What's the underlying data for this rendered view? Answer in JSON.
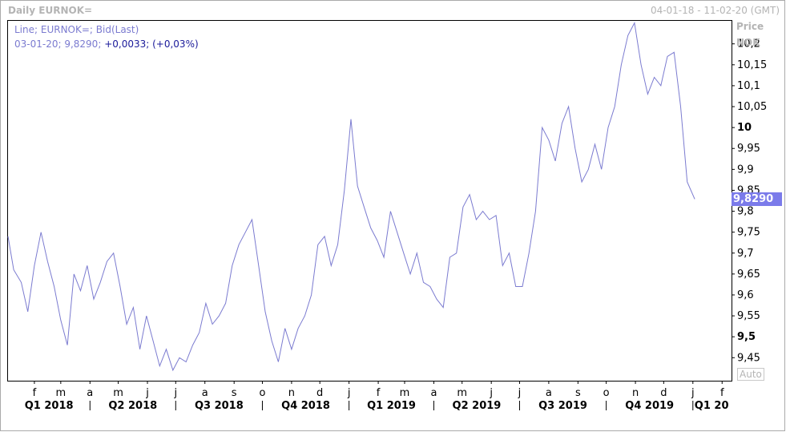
{
  "header": {
    "title": "Daily EURNOK=",
    "date_range": "04-01-18 - 11-02-20 (GMT)"
  },
  "legend": {
    "series_label": "Line; EURNOK=; Bid(Last)",
    "date": "03-01-20",
    "last": "9,8290",
    "change": "+0,0033",
    "change_pct": "(+0,03%)"
  },
  "y_axis": {
    "title": "Price",
    "unit": "NOK",
    "auto_label": "Auto"
  },
  "colors": {
    "line": "#7b7bd0",
    "badge": "#7b7bea",
    "axis_text": "#b4b4b4",
    "frame": "#000000"
  },
  "chart_data": {
    "type": "line",
    "series": [
      {
        "x": [
          "2018-01-04",
          "2018-01-10",
          "2018-01-18",
          "2018-01-25",
          "2018-02-01",
          "2018-02-08",
          "2018-02-15",
          "2018-02-22",
          "2018-03-01",
          "2018-03-08",
          "2018-03-15",
          "2018-03-22",
          "2018-03-29",
          "2018-04-05",
          "2018-04-12",
          "2018-04-19",
          "2018-04-26",
          "2018-05-03",
          "2018-05-10",
          "2018-05-17",
          "2018-05-24",
          "2018-05-31",
          "2018-06-07",
          "2018-06-14",
          "2018-06-21",
          "2018-06-28",
          "2018-07-05",
          "2018-07-12",
          "2018-07-19",
          "2018-07-26",
          "2018-08-02",
          "2018-08-09",
          "2018-08-16",
          "2018-08-23",
          "2018-08-30",
          "2018-09-06",
          "2018-09-13",
          "2018-09-20",
          "2018-09-27",
          "2018-10-04",
          "2018-10-11",
          "2018-10-18",
          "2018-10-25",
          "2018-11-01",
          "2018-11-08",
          "2018-11-15",
          "2018-11-22",
          "2018-11-29",
          "2018-12-06",
          "2018-12-13",
          "2018-12-20",
          "2018-12-27",
          "2019-01-03",
          "2019-01-10",
          "2019-01-17",
          "2019-01-24",
          "2019-01-31",
          "2019-02-07",
          "2019-02-14",
          "2019-02-21",
          "2019-02-28",
          "2019-03-07",
          "2019-03-14",
          "2019-03-21",
          "2019-03-28",
          "2019-04-04",
          "2019-04-11",
          "2019-04-18",
          "2019-04-25",
          "2019-05-02",
          "2019-05-09",
          "2019-05-16",
          "2019-05-23",
          "2019-05-30",
          "2019-06-06",
          "2019-06-13",
          "2019-06-20",
          "2019-06-27",
          "2019-07-04",
          "2019-07-11",
          "2019-07-18",
          "2019-07-25",
          "2019-08-01",
          "2019-08-08",
          "2019-08-15",
          "2019-08-22",
          "2019-08-29",
          "2019-09-05",
          "2019-09-12",
          "2019-09-19",
          "2019-09-26",
          "2019-10-03",
          "2019-10-10",
          "2019-10-17",
          "2019-10-24",
          "2019-10-31",
          "2019-11-07",
          "2019-11-14",
          "2019-11-21",
          "2019-11-28",
          "2019-12-05",
          "2019-12-12",
          "2019-12-19",
          "2019-12-26",
          "2020-01-03"
        ],
        "values": [
          9.74,
          9.66,
          9.63,
          9.56,
          9.67,
          9.75,
          9.68,
          9.62,
          9.54,
          9.48,
          9.65,
          9.61,
          9.67,
          9.59,
          9.63,
          9.68,
          9.7,
          9.62,
          9.53,
          9.57,
          9.47,
          9.55,
          9.49,
          9.43,
          9.47,
          9.42,
          9.45,
          9.44,
          9.48,
          9.51,
          9.58,
          9.53,
          9.55,
          9.58,
          9.67,
          9.72,
          9.75,
          9.78,
          9.67,
          9.56,
          9.49,
          9.44,
          9.52,
          9.47,
          9.52,
          9.55,
          9.6,
          9.72,
          9.74,
          9.67,
          9.72,
          9.85,
          10.02,
          9.86,
          9.81,
          9.76,
          9.73,
          9.69,
          9.8,
          9.75,
          9.7,
          9.65,
          9.7,
          9.63,
          9.62,
          9.59,
          9.57,
          9.69,
          9.7,
          9.81,
          9.84,
          9.78,
          9.8,
          9.78,
          9.79,
          9.67,
          9.7,
          9.62,
          9.62,
          9.7,
          9.8,
          10.0,
          9.97,
          9.92,
          10.01,
          10.05,
          9.95,
          9.87,
          9.9,
          9.96,
          9.9,
          10.0,
          10.05,
          10.15,
          10.22,
          10.25,
          10.15,
          10.08,
          10.12,
          10.1,
          10.17,
          10.18,
          10.05,
          9.87,
          9.829
        ]
      }
    ],
    "ylim": [
      9.395,
      10.255
    ],
    "xlim": [
      "2018-01-04",
      "2020-02-11"
    ],
    "y_ticks": [
      "10,2",
      "10,15",
      "10,1",
      "10,05",
      "10",
      "9,95",
      "9,9",
      "9,85",
      "9,8",
      "9,75",
      "9,7",
      "9,65",
      "9,6",
      "9,55",
      "9,5",
      "9,45"
    ],
    "y_tick_values": [
      10.2,
      10.15,
      10.1,
      10.05,
      10.0,
      9.95,
      9.9,
      9.85,
      9.8,
      9.75,
      9.7,
      9.65,
      9.6,
      9.55,
      9.5,
      9.45
    ],
    "bold_ticks": [
      "10",
      "9,5"
    ],
    "month_labels": [
      "f",
      "m",
      "a",
      "m",
      "j",
      "j",
      "a",
      "s",
      "o",
      "n",
      "d",
      "j",
      "f",
      "m",
      "a",
      "m",
      "j",
      "j",
      "a",
      "s",
      "o",
      "n",
      "d",
      "j",
      "f"
    ],
    "month_dates": [
      "2018-02-01",
      "2018-03-01",
      "2018-04-01",
      "2018-05-01",
      "2018-06-01",
      "2018-07-01",
      "2018-08-01",
      "2018-09-01",
      "2018-10-01",
      "2018-11-01",
      "2018-12-01",
      "2019-01-01",
      "2019-02-01",
      "2019-03-01",
      "2019-04-01",
      "2019-05-01",
      "2019-06-01",
      "2019-07-01",
      "2019-08-01",
      "2019-09-01",
      "2019-10-01",
      "2019-11-01",
      "2019-12-01",
      "2020-01-01",
      "2020-02-01"
    ],
    "quarter_labels": [
      "Q1 2018",
      "Q2 2018",
      "Q3 2018",
      "Q4 2018",
      "Q1 2019",
      "Q2 2019",
      "Q3 2019",
      "Q4 2019",
      "Q1 20"
    ],
    "quarter_starts": [
      "2018-01-04",
      "2018-04-01",
      "2018-07-01",
      "2018-10-01",
      "2019-01-01",
      "2019-04-01",
      "2019-07-01",
      "2019-10-01",
      "2020-01-01"
    ],
    "last_value_label": "9,8290",
    "grid": false
  }
}
